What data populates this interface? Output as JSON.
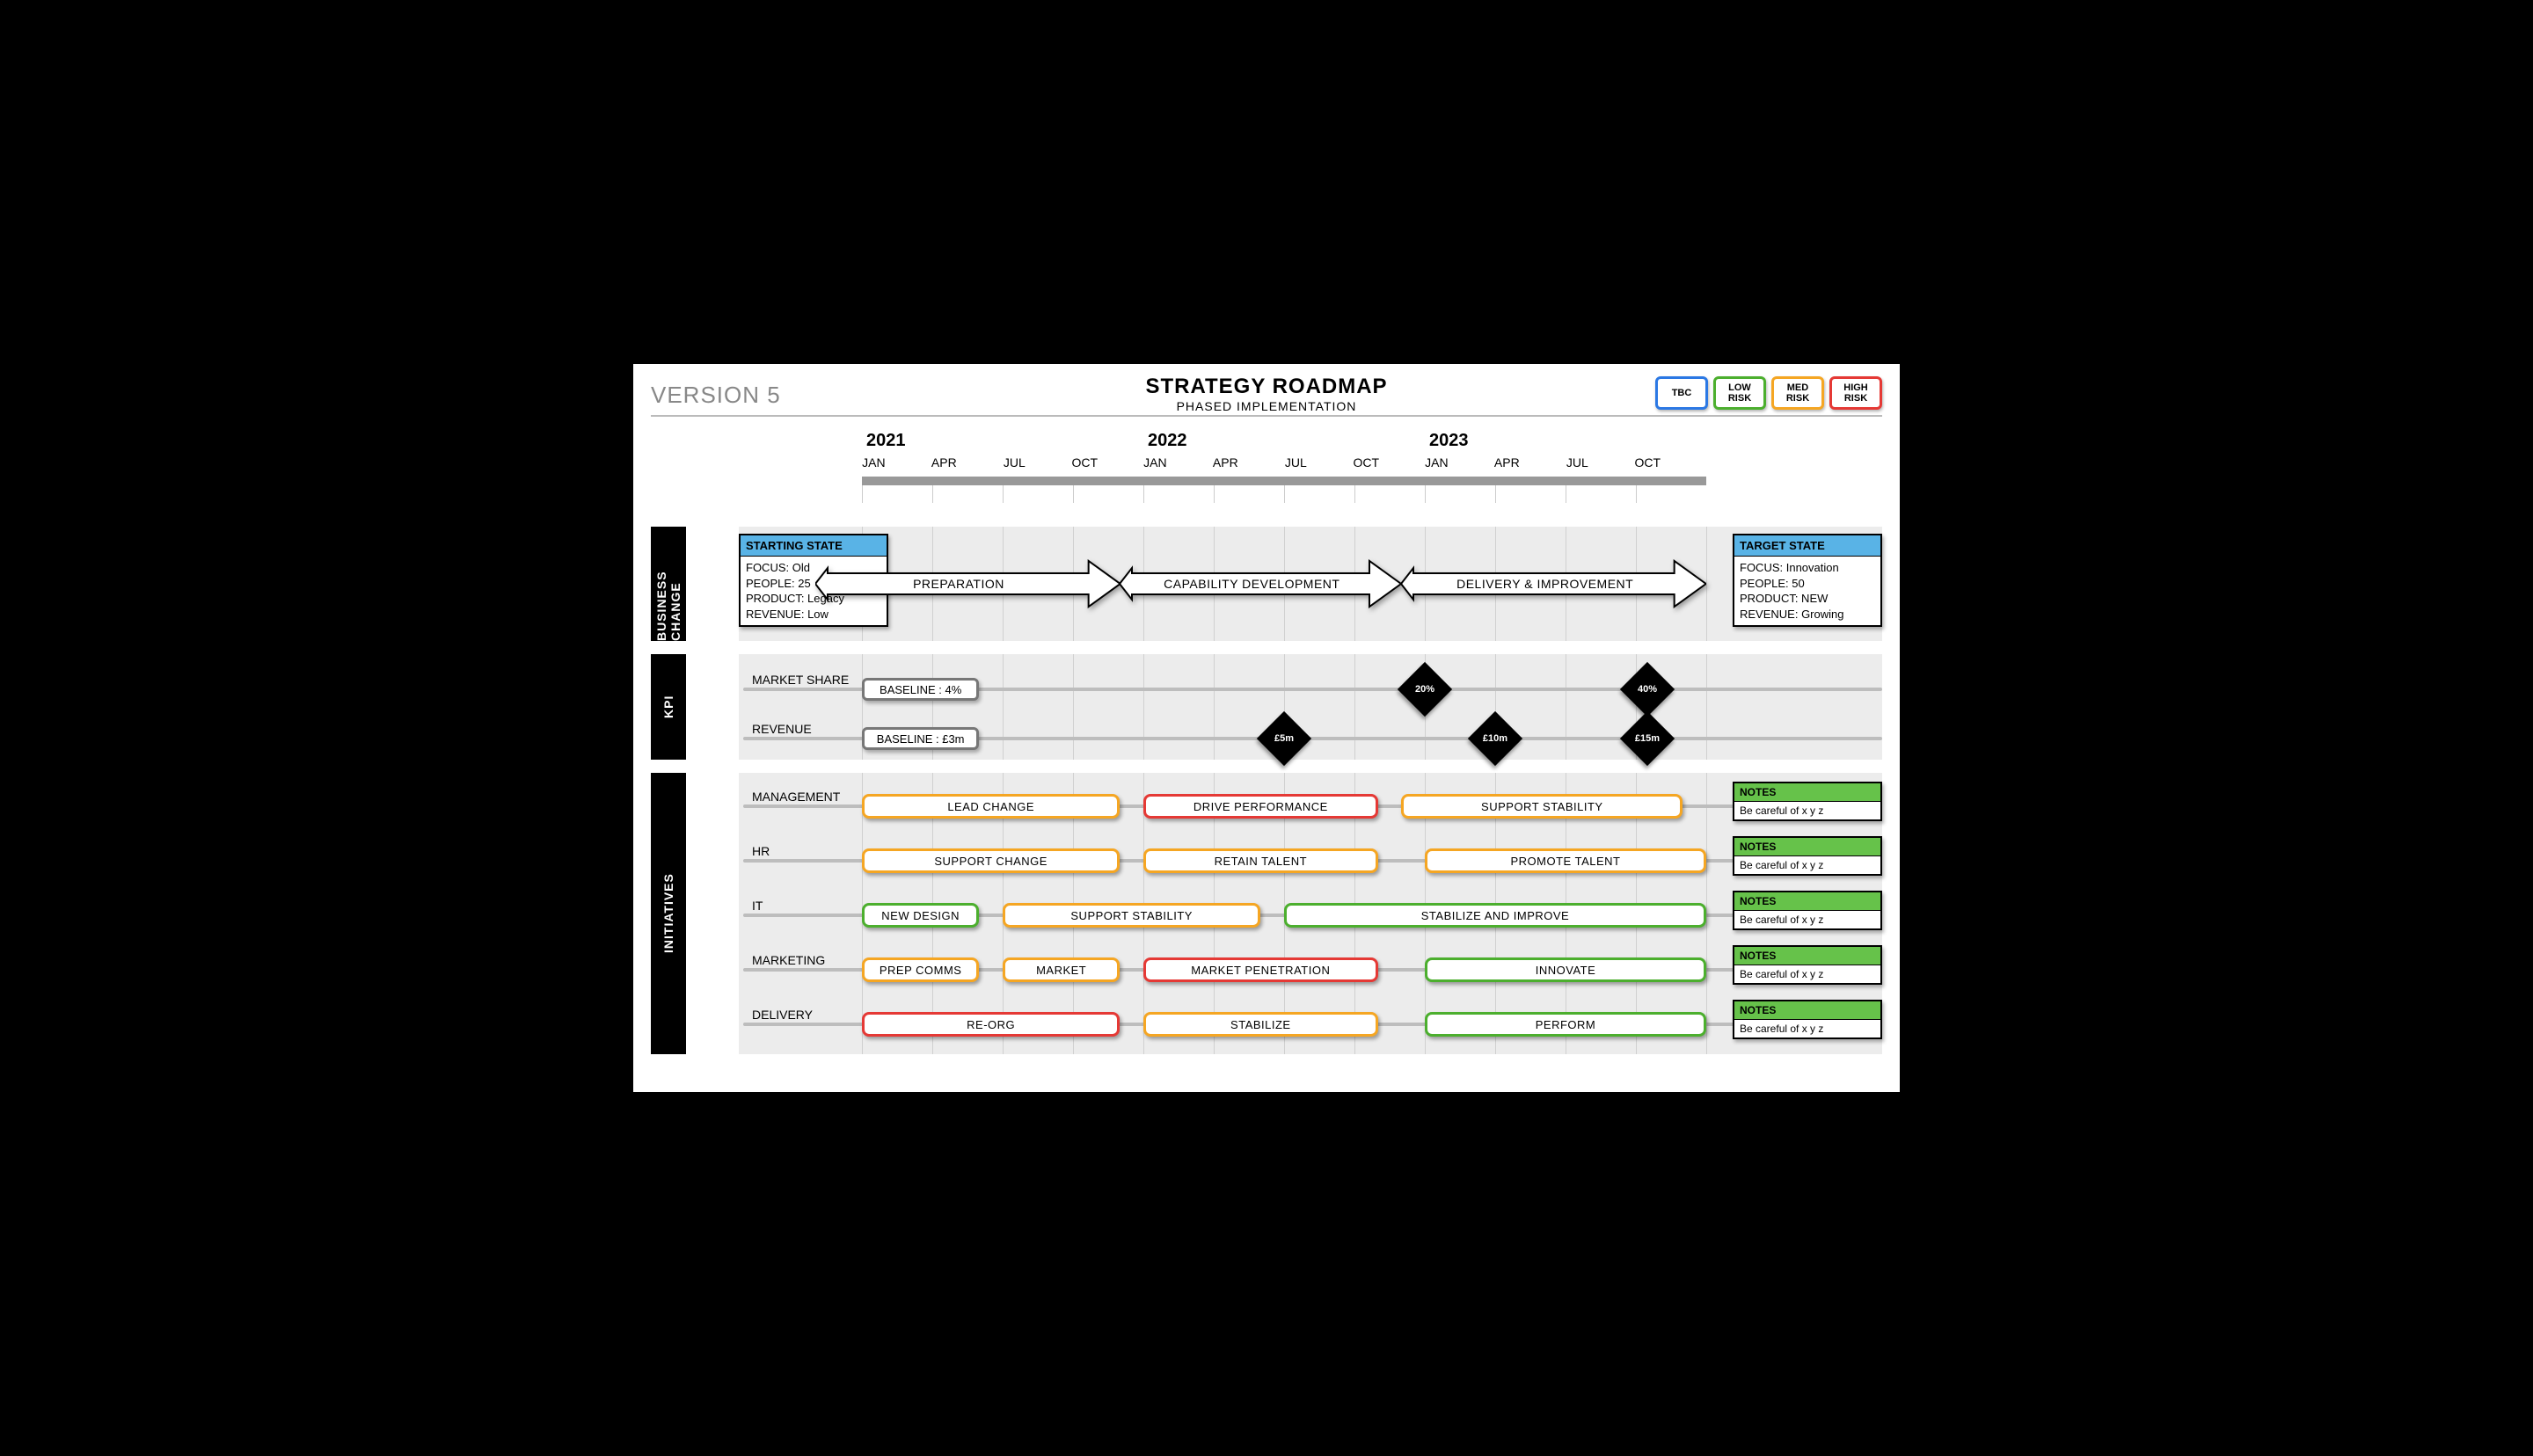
{
  "header": {
    "version": "VERSION 5",
    "title": "STRATEGY ROADMAP",
    "subtitle": "PHASED IMPLEMENTATION"
  },
  "legend": [
    {
      "label": "TBC",
      "color": "#2b78e4"
    },
    {
      "label": "LOW RISK",
      "color": "#4caf2e"
    },
    {
      "label": "MED RISK",
      "color": "#f5a623"
    },
    {
      "label": "HIGH RISK",
      "color": "#e53935"
    }
  ],
  "colors": {
    "tbc": "#2b78e4",
    "low": "#4caf2e",
    "med": "#f5a623",
    "high": "#e53935",
    "state_header": "#59b3e6",
    "notes_header": "#66c24a",
    "grid": "#d0d0d0",
    "section_bg": "#ececec"
  },
  "timeline": {
    "start_month_index": 0,
    "total_months": 36,
    "years": [
      {
        "label": "2021",
        "at_month": 0
      },
      {
        "label": "2022",
        "at_month": 12
      },
      {
        "label": "2023",
        "at_month": 24
      }
    ],
    "month_ticks": [
      {
        "label": "JAN",
        "m": 0
      },
      {
        "label": "APR",
        "m": 3
      },
      {
        "label": "JUL",
        "m": 6
      },
      {
        "label": "OCT",
        "m": 9
      },
      {
        "label": "JAN",
        "m": 12
      },
      {
        "label": "APR",
        "m": 15
      },
      {
        "label": "JUL",
        "m": 18
      },
      {
        "label": "OCT",
        "m": 21
      },
      {
        "label": "JAN",
        "m": 24
      },
      {
        "label": "APR",
        "m": 27
      },
      {
        "label": "JUL",
        "m": 30
      },
      {
        "label": "OCT",
        "m": 33
      }
    ]
  },
  "states": {
    "start": {
      "title": "STARTING STATE",
      "lines": [
        "FOCUS: Old",
        "PEOPLE: 25",
        "PRODUCT: Legacy",
        "REVENUE: Low"
      ]
    },
    "target": {
      "title": "TARGET STATE",
      "lines": [
        "FOCUS: Innovation",
        "PEOPLE: 50",
        "PRODUCT: NEW",
        "REVENUE: Growing"
      ]
    }
  },
  "phases": [
    {
      "label": "PREPARATION",
      "from": -2,
      "to": 11
    },
    {
      "label": "CAPABILITY DEVELOPMENT",
      "from": 11,
      "to": 23
    },
    {
      "label": "DELIVERY & IMPROVEMENT",
      "from": 23,
      "to": 36
    }
  ],
  "sections": {
    "business_change": {
      "side_label": "BUSINESS CHANGE"
    },
    "kpi": {
      "side_label": "KPI",
      "rows": [
        {
          "label": "MARKET SHARE",
          "baseline": {
            "text": "BASELINE : 4%",
            "from": 0,
            "to": 5
          },
          "points": [
            {
              "m": 24,
              "text": "20%"
            },
            {
              "m": 33.5,
              "text": "40%"
            }
          ]
        },
        {
          "label": "REVENUE",
          "baseline": {
            "text": "BASELINE : £3m",
            "from": 0,
            "to": 5
          },
          "points": [
            {
              "m": 18,
              "text": "£5m"
            },
            {
              "m": 27,
              "text": "£10m"
            },
            {
              "m": 33.5,
              "text": "£15m"
            }
          ]
        }
      ]
    },
    "initiatives": {
      "side_label": "INITIATIVES",
      "rows": [
        {
          "label": "MANAGEMENT",
          "notes": {
            "title": "NOTES",
            "body": "Be careful of x y z"
          },
          "bars": [
            {
              "text": "LEAD CHANGE",
              "from": 0,
              "to": 11,
              "risk": "med"
            },
            {
              "text": "DRIVE PERFORMANCE",
              "from": 12,
              "to": 22,
              "risk": "high"
            },
            {
              "text": "SUPPORT STABILITY",
              "from": 23,
              "to": 35,
              "risk": "med"
            }
          ]
        },
        {
          "label": "HR",
          "notes": {
            "title": "NOTES",
            "body": "Be careful of x y z"
          },
          "bars": [
            {
              "text": "SUPPORT CHANGE",
              "from": 0,
              "to": 11,
              "risk": "med"
            },
            {
              "text": "RETAIN TALENT",
              "from": 12,
              "to": 22,
              "risk": "med"
            },
            {
              "text": "PROMOTE TALENT",
              "from": 24,
              "to": 36,
              "risk": "med"
            }
          ]
        },
        {
          "label": "IT",
          "notes": {
            "title": "NOTES",
            "body": "Be careful of x y z"
          },
          "bars": [
            {
              "text": "NEW DESIGN",
              "from": 0,
              "to": 5,
              "risk": "low"
            },
            {
              "text": "SUPPORT STABILITY",
              "from": 6,
              "to": 17,
              "risk": "med"
            },
            {
              "text": "STABILIZE AND IMPROVE",
              "from": 18,
              "to": 36,
              "risk": "low"
            }
          ]
        },
        {
          "label": "MARKETING",
          "notes": {
            "title": "NOTES",
            "body": "Be careful of x y z"
          },
          "bars": [
            {
              "text": "PREP COMMS",
              "from": 0,
              "to": 5,
              "risk": "med"
            },
            {
              "text": "MARKET",
              "from": 6,
              "to": 11,
              "risk": "med"
            },
            {
              "text": "MARKET PENETRATION",
              "from": 12,
              "to": 22,
              "risk": "high"
            },
            {
              "text": "INNOVATE",
              "from": 24,
              "to": 36,
              "risk": "low"
            }
          ]
        },
        {
          "label": "DELIVERY",
          "notes": {
            "title": "NOTES",
            "body": "Be careful of x y z"
          },
          "bars": [
            {
              "text": "RE-ORG",
              "from": 0,
              "to": 11,
              "risk": "high"
            },
            {
              "text": "STABILIZE",
              "from": 12,
              "to": 22,
              "risk": "med"
            },
            {
              "text": "PERFORM",
              "from": 24,
              "to": 36,
              "risk": "low"
            }
          ]
        }
      ]
    }
  }
}
